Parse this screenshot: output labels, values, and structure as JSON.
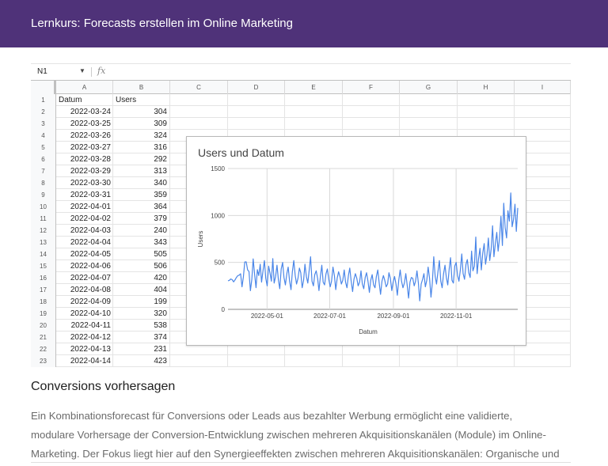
{
  "header": {
    "title": "Lernkurs: Forecasts erstellen im Online Marketing"
  },
  "sheet": {
    "name_box": "N1",
    "fx_icon": "fx-icon",
    "columns": [
      "A",
      "B",
      "C",
      "D",
      "E",
      "F",
      "G",
      "H",
      "I"
    ],
    "header_row": {
      "num": "1",
      "a": "Datum",
      "b": "Users"
    },
    "rows": [
      {
        "num": "2",
        "a": "2022-03-24",
        "b": "304"
      },
      {
        "num": "3",
        "a": "2022-03-25",
        "b": "309"
      },
      {
        "num": "4",
        "a": "2022-03-26",
        "b": "324"
      },
      {
        "num": "5",
        "a": "2022-03-27",
        "b": "316"
      },
      {
        "num": "6",
        "a": "2022-03-28",
        "b": "292"
      },
      {
        "num": "7",
        "a": "2022-03-29",
        "b": "313"
      },
      {
        "num": "8",
        "a": "2022-03-30",
        "b": "340"
      },
      {
        "num": "9",
        "a": "2022-03-31",
        "b": "359"
      },
      {
        "num": "10",
        "a": "2022-04-01",
        "b": "364"
      },
      {
        "num": "11",
        "a": "2022-04-02",
        "b": "379"
      },
      {
        "num": "12",
        "a": "2022-04-03",
        "b": "240"
      },
      {
        "num": "13",
        "a": "2022-04-04",
        "b": "343"
      },
      {
        "num": "14",
        "a": "2022-04-05",
        "b": "505"
      },
      {
        "num": "15",
        "a": "2022-04-06",
        "b": "506"
      },
      {
        "num": "16",
        "a": "2022-04-07",
        "b": "420"
      },
      {
        "num": "17",
        "a": "2022-04-08",
        "b": "404"
      },
      {
        "num": "18",
        "a": "2022-04-09",
        "b": "199"
      },
      {
        "num": "19",
        "a": "2022-04-10",
        "b": "320"
      },
      {
        "num": "20",
        "a": "2022-04-11",
        "b": "538"
      },
      {
        "num": "21",
        "a": "2022-04-12",
        "b": "374"
      },
      {
        "num": "22",
        "a": "2022-04-13",
        "b": "231"
      },
      {
        "num": "23",
        "a": "2022-04-14",
        "b": "423"
      }
    ]
  },
  "chart_data": {
    "type": "line",
    "title": "Users und Datum",
    "xlabel": "Datum",
    "ylabel": "Users",
    "ylim": [
      0,
      1500
    ],
    "yticks": [
      "0",
      "500",
      "1000",
      "1500"
    ],
    "xticks": [
      "2022-05-01",
      "2022-07-01",
      "2022-09-01",
      "2022-11-01"
    ],
    "grid": true,
    "series": [
      {
        "color": "#4a86e8",
        "x_start": "2022-03-24",
        "x_end": "2022-12-31",
        "values": [
          304,
          309,
          324,
          316,
          292,
          313,
          340,
          359,
          364,
          379,
          240,
          343,
          505,
          506,
          420,
          404,
          199,
          320,
          538,
          374,
          231,
          423,
          360,
          480,
          290,
          410,
          520,
          330,
          250,
          460,
          390,
          300,
          540,
          280,
          350,
          470,
          310,
          220,
          430,
          500,
          340,
          260,
          380,
          450,
          300,
          210,
          400,
          520,
          360,
          270,
          330,
          440,
          390,
          230,
          310,
          480,
          350,
          280,
          420,
          560,
          300,
          250,
          370,
          410,
          330,
          200,
          350,
          470,
          290,
          260,
          380,
          430,
          320,
          240,
          300,
          450,
          360,
          210,
          330,
          400,
          350,
          270,
          310,
          420,
          290,
          230,
          360,
          440,
          300,
          190,
          320,
          380,
          330,
          250,
          290,
          410,
          270,
          220,
          340,
          390,
          300,
          180,
          310,
          370,
          260,
          230,
          350,
          420,
          280,
          160,
          300,
          360,
          310,
          240,
          270,
          390,
          330,
          200,
          290,
          350,
          270,
          150,
          310,
          420,
          300,
          230,
          280,
          380,
          260,
          120,
          290,
          340,
          330,
          250,
          300,
          410,
          280,
          90,
          270,
          320,
          380,
          240,
          310,
          450,
          330,
          130,
          280,
          560,
          350,
          270,
          400,
          520,
          300,
          230,
          380,
          470,
          340,
          260,
          430,
          550,
          310,
          280,
          460,
          500,
          360,
          300,
          420,
          590,
          380,
          320,
          480,
          530,
          390,
          340,
          620,
          410,
          460,
          770,
          380,
          540,
          650,
          420,
          600,
          700,
          480,
          580,
          760,
          520,
          640,
          890,
          560,
          700,
          820,
          620,
          760,
          990,
          680,
          1130,
          870,
          760,
          1050,
          940,
          1240,
          880,
          960,
          1120,
          830,
          1080
        ]
      }
    ]
  },
  "section": {
    "title": "Conversions vorhersagen",
    "lines": [
      "Ein Kombinationsforecast für Conversions oder Leads aus bezahlter Werbung ermöglicht eine validierte,",
      "modulare Vorhersage der Conversion-Entwicklung zwischen mehreren Akquisitionskanälen (Module) im Online-",
      "Marketing. Der Fokus liegt hier auf den Synergieeffekten zwischen mehreren Akquisitionskanälen: Organische und"
    ]
  }
}
